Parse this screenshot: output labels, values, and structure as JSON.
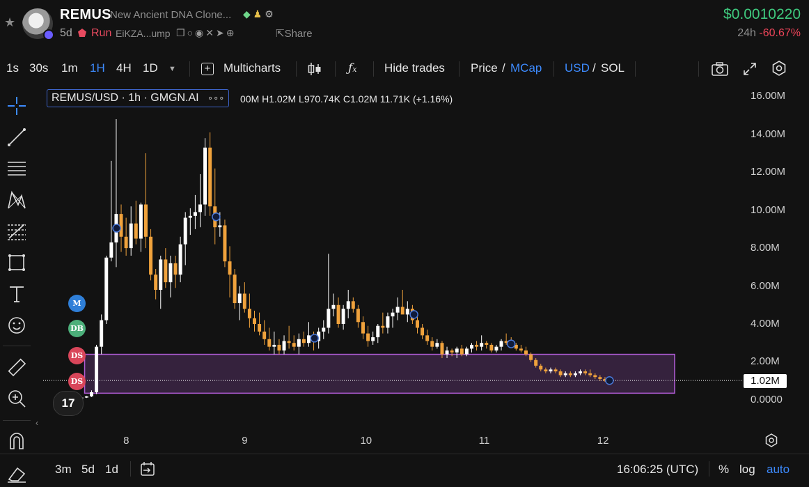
{
  "token": {
    "symbol": "REMUS",
    "name": "New Ancient DNA Clone...",
    "age": "5d",
    "status": "Run",
    "address": "EiKZA...ump",
    "share_label": "Share",
    "price": "$0.0010220",
    "change_label": "24h",
    "change_value": "-60.67%"
  },
  "toolbar": {
    "intervals": [
      "1s",
      "30s",
      "1m",
      "1H",
      "4H",
      "1D"
    ],
    "active_interval": "1H",
    "multicharts": "Multicharts",
    "hide_trades": "Hide trades",
    "price": "Price",
    "slash": "/",
    "mcap": "MCap",
    "usd": "USD",
    "sol": "SOL"
  },
  "legend": {
    "title": "REMUS/USD · 1h · GMGN.AI",
    "dots": "∘∘∘",
    "ohlc": "00M  H1.02M  L970.74K  C1.02M  11.71K (+1.16%)"
  },
  "side_badges": [
    {
      "text": "M",
      "color": "#2f7fd8"
    },
    {
      "text": "DB",
      "color": "#4caf7a"
    },
    {
      "text": "DS",
      "color": "#d9465a"
    },
    {
      "text": "DS",
      "color": "#d9465a"
    }
  ],
  "tv_logo": "17",
  "last_price_tag": "1.02M",
  "bottom": {
    "ranges": [
      "3m",
      "5d",
      "1d"
    ],
    "time": "16:06:25 (UTC)",
    "percent": "%",
    "log": "log",
    "auto": "auto"
  },
  "colors": {
    "up": "#ffffff",
    "down": "#f0a23c",
    "accent": "#3d8bff",
    "positive": "#3fc97e",
    "negative": "#f0455a",
    "zone": "#b15cd6"
  },
  "chart_data": {
    "type": "candlestick",
    "y_tick_labels": [
      "16.00M",
      "14.00M",
      "12.00M",
      "10.00M",
      "8.00M",
      "6.00M",
      "4.00M",
      "2.00M",
      "0.0000"
    ],
    "y_ticks": [
      16,
      14,
      12,
      10,
      8,
      6,
      4,
      2,
      0
    ],
    "x_tick_labels": [
      "8",
      "9",
      "10",
      "11",
      "12"
    ],
    "x_ticks": [
      8,
      9,
      10,
      11,
      12
    ],
    "ylim": [
      -1.4,
      16.6
    ],
    "xlim": [
      7.3,
      13.2
    ],
    "unit": "M",
    "last_price": 1.02,
    "zone": {
      "x0": 7.65,
      "x1": 12.63,
      "y0": 0.35,
      "y1": 2.4
    },
    "marker_times": [
      7.92,
      8.76,
      9.59,
      10.43,
      11.25,
      12.08
    ],
    "x_start": 7.5,
    "x_step": 0.04167,
    "candles": [
      [
        0.02,
        0.05,
        0.01,
        0.03
      ],
      [
        0.03,
        0.06,
        0.02,
        0.05
      ],
      [
        0.05,
        0.1,
        0.04,
        0.08
      ],
      [
        0.08,
        0.15,
        0.06,
        0.12
      ],
      [
        0.12,
        0.2,
        0.1,
        0.18
      ],
      [
        0.18,
        0.5,
        0.15,
        0.4
      ],
      [
        0.4,
        2.9,
        0.3,
        2.8
      ],
      [
        2.8,
        4.5,
        2.4,
        4.2
      ],
      [
        4.2,
        7.6,
        4.0,
        7.5
      ],
      [
        7.5,
        12.6,
        7.3,
        8.3
      ],
      [
        8.3,
        14.8,
        7.0,
        9.8
      ],
      [
        9.8,
        10.3,
        7.8,
        8.6
      ],
      [
        8.6,
        9.6,
        7.6,
        8.0
      ],
      [
        8.0,
        10.2,
        7.6,
        9.3
      ],
      [
        9.3,
        10.5,
        8.2,
        8.5
      ],
      [
        8.5,
        10.4,
        7.8,
        10.3
      ],
      [
        10.3,
        13.0,
        8.0,
        8.6
      ],
      [
        8.6,
        9.0,
        6.3,
        6.6
      ],
      [
        6.6,
        6.9,
        5.3,
        5.8
      ],
      [
        5.8,
        7.6,
        4.8,
        7.4
      ],
      [
        7.4,
        8.0,
        5.9,
        6.2
      ],
      [
        6.2,
        7.6,
        5.4,
        7.2
      ],
      [
        7.2,
        7.6,
        5.9,
        6.6
      ],
      [
        6.6,
        8.6,
        6.2,
        8.2
      ],
      [
        8.2,
        9.9,
        7.1,
        9.6
      ],
      [
        9.6,
        10.1,
        8.7,
        9.7
      ],
      [
        9.7,
        10.8,
        9.0,
        9.9
      ],
      [
        9.9,
        11.9,
        9.1,
        10.3
      ],
      [
        10.3,
        13.8,
        9.7,
        13.3
      ],
      [
        13.3,
        14.1,
        9.7,
        10.2
      ],
      [
        10.2,
        12.2,
        8.2,
        9.1
      ],
      [
        9.1,
        9.9,
        8.6,
        9.2
      ],
      [
        9.2,
        9.5,
        7.0,
        7.3
      ],
      [
        7.3,
        8.1,
        5.4,
        6.6
      ],
      [
        6.6,
        6.9,
        4.8,
        5.1
      ],
      [
        5.1,
        6.0,
        4.2,
        5.6
      ],
      [
        5.6,
        6.2,
        4.6,
        4.8
      ],
      [
        4.8,
        5.6,
        3.8,
        4.3
      ],
      [
        4.3,
        4.7,
        3.6,
        4.0
      ],
      [
        4.0,
        4.6,
        3.4,
        3.6
      ],
      [
        3.6,
        4.2,
        2.9,
        3.2
      ],
      [
        3.2,
        3.8,
        2.6,
        2.8
      ],
      [
        2.8,
        3.6,
        2.4,
        2.9
      ],
      [
        2.9,
        3.2,
        2.4,
        2.6
      ],
      [
        2.6,
        3.4,
        2.4,
        3.1
      ],
      [
        3.1,
        3.9,
        2.7,
        3.0
      ],
      [
        3.0,
        3.4,
        2.6,
        2.8
      ],
      [
        2.8,
        3.5,
        2.4,
        3.2
      ],
      [
        3.2,
        3.6,
        2.8,
        3.0
      ],
      [
        3.0,
        4.1,
        2.8,
        3.4
      ],
      [
        3.4,
        3.6,
        2.6,
        3.1
      ],
      [
        3.1,
        3.8,
        2.7,
        3.6
      ],
      [
        3.6,
        4.2,
        3.2,
        3.8
      ],
      [
        3.8,
        7.7,
        3.5,
        4.8
      ],
      [
        4.8,
        5.6,
        4.4,
        5.0
      ],
      [
        5.0,
        5.4,
        3.8,
        4.0
      ],
      [
        4.0,
        5.0,
        3.7,
        4.8
      ],
      [
        4.8,
        5.8,
        4.3,
        5.2
      ],
      [
        5.2,
        5.4,
        4.6,
        4.8
      ],
      [
        4.8,
        5.0,
        3.8,
        4.1
      ],
      [
        4.1,
        4.4,
        3.2,
        3.5
      ],
      [
        3.5,
        3.9,
        2.8,
        3.1
      ],
      [
        3.1,
        3.6,
        2.9,
        3.3
      ],
      [
        3.3,
        4.0,
        3.0,
        3.9
      ],
      [
        3.9,
        4.6,
        3.5,
        3.8
      ],
      [
        3.8,
        4.6,
        3.5,
        4.4
      ],
      [
        4.4,
        4.8,
        3.8,
        4.6
      ],
      [
        4.6,
        5.4,
        4.2,
        4.9
      ],
      [
        4.9,
        5.8,
        4.6,
        4.5
      ],
      [
        4.5,
        5.2,
        4.1,
        4.8
      ],
      [
        4.8,
        5.0,
        4.0,
        4.2
      ],
      [
        4.2,
        4.5,
        3.5,
        3.8
      ],
      [
        3.8,
        4.0,
        3.2,
        3.4
      ],
      [
        3.4,
        3.7,
        2.9,
        3.1
      ],
      [
        3.1,
        3.3,
        2.6,
        2.8
      ],
      [
        2.8,
        3.2,
        2.7,
        3.0
      ],
      [
        3.0,
        3.1,
        2.2,
        2.4
      ],
      [
        2.4,
        2.8,
        2.2,
        2.6
      ],
      [
        2.6,
        2.7,
        2.3,
        2.5
      ],
      [
        2.5,
        2.8,
        2.2,
        2.7
      ],
      [
        2.7,
        2.9,
        2.3,
        2.4
      ],
      [
        2.4,
        2.8,
        2.3,
        2.7
      ],
      [
        2.7,
        3.0,
        2.5,
        2.9
      ],
      [
        2.9,
        3.1,
        2.6,
        2.8
      ],
      [
        2.8,
        3.4,
        2.6,
        3.0
      ],
      [
        3.0,
        3.1,
        2.7,
        2.9
      ],
      [
        2.9,
        3.0,
        2.5,
        2.6
      ],
      [
        2.6,
        2.9,
        2.5,
        2.8
      ],
      [
        2.8,
        3.2,
        2.6,
        3.1
      ],
      [
        3.1,
        3.5,
        2.9,
        3.0
      ],
      [
        3.0,
        3.3,
        2.8,
        2.9
      ],
      [
        2.9,
        3.0,
        2.6,
        2.7
      ],
      [
        2.7,
        2.9,
        2.5,
        2.6
      ],
      [
        2.6,
        2.8,
        2.3,
        2.4
      ],
      [
        2.4,
        2.5,
        2.0,
        2.1
      ],
      [
        2.1,
        2.2,
        1.7,
        1.8
      ],
      [
        1.8,
        1.9,
        1.5,
        1.6
      ],
      [
        1.6,
        1.7,
        1.4,
        1.5
      ],
      [
        1.5,
        1.7,
        1.4,
        1.6
      ],
      [
        1.6,
        1.7,
        1.4,
        1.5
      ],
      [
        1.5,
        1.6,
        1.2,
        1.3
      ],
      [
        1.3,
        1.5,
        1.2,
        1.4
      ],
      [
        1.4,
        1.5,
        1.2,
        1.3
      ],
      [
        1.3,
        1.5,
        1.2,
        1.4
      ],
      [
        1.4,
        1.6,
        1.3,
        1.5
      ],
      [
        1.5,
        1.6,
        1.3,
        1.4
      ],
      [
        1.4,
        1.6,
        1.2,
        1.3
      ],
      [
        1.3,
        1.4,
        1.1,
        1.2
      ],
      [
        1.2,
        1.3,
        1.0,
        1.1
      ],
      [
        1.1,
        1.2,
        0.95,
        1.01
      ],
      [
        1.01,
        1.05,
        0.97,
        1.02
      ]
    ]
  }
}
